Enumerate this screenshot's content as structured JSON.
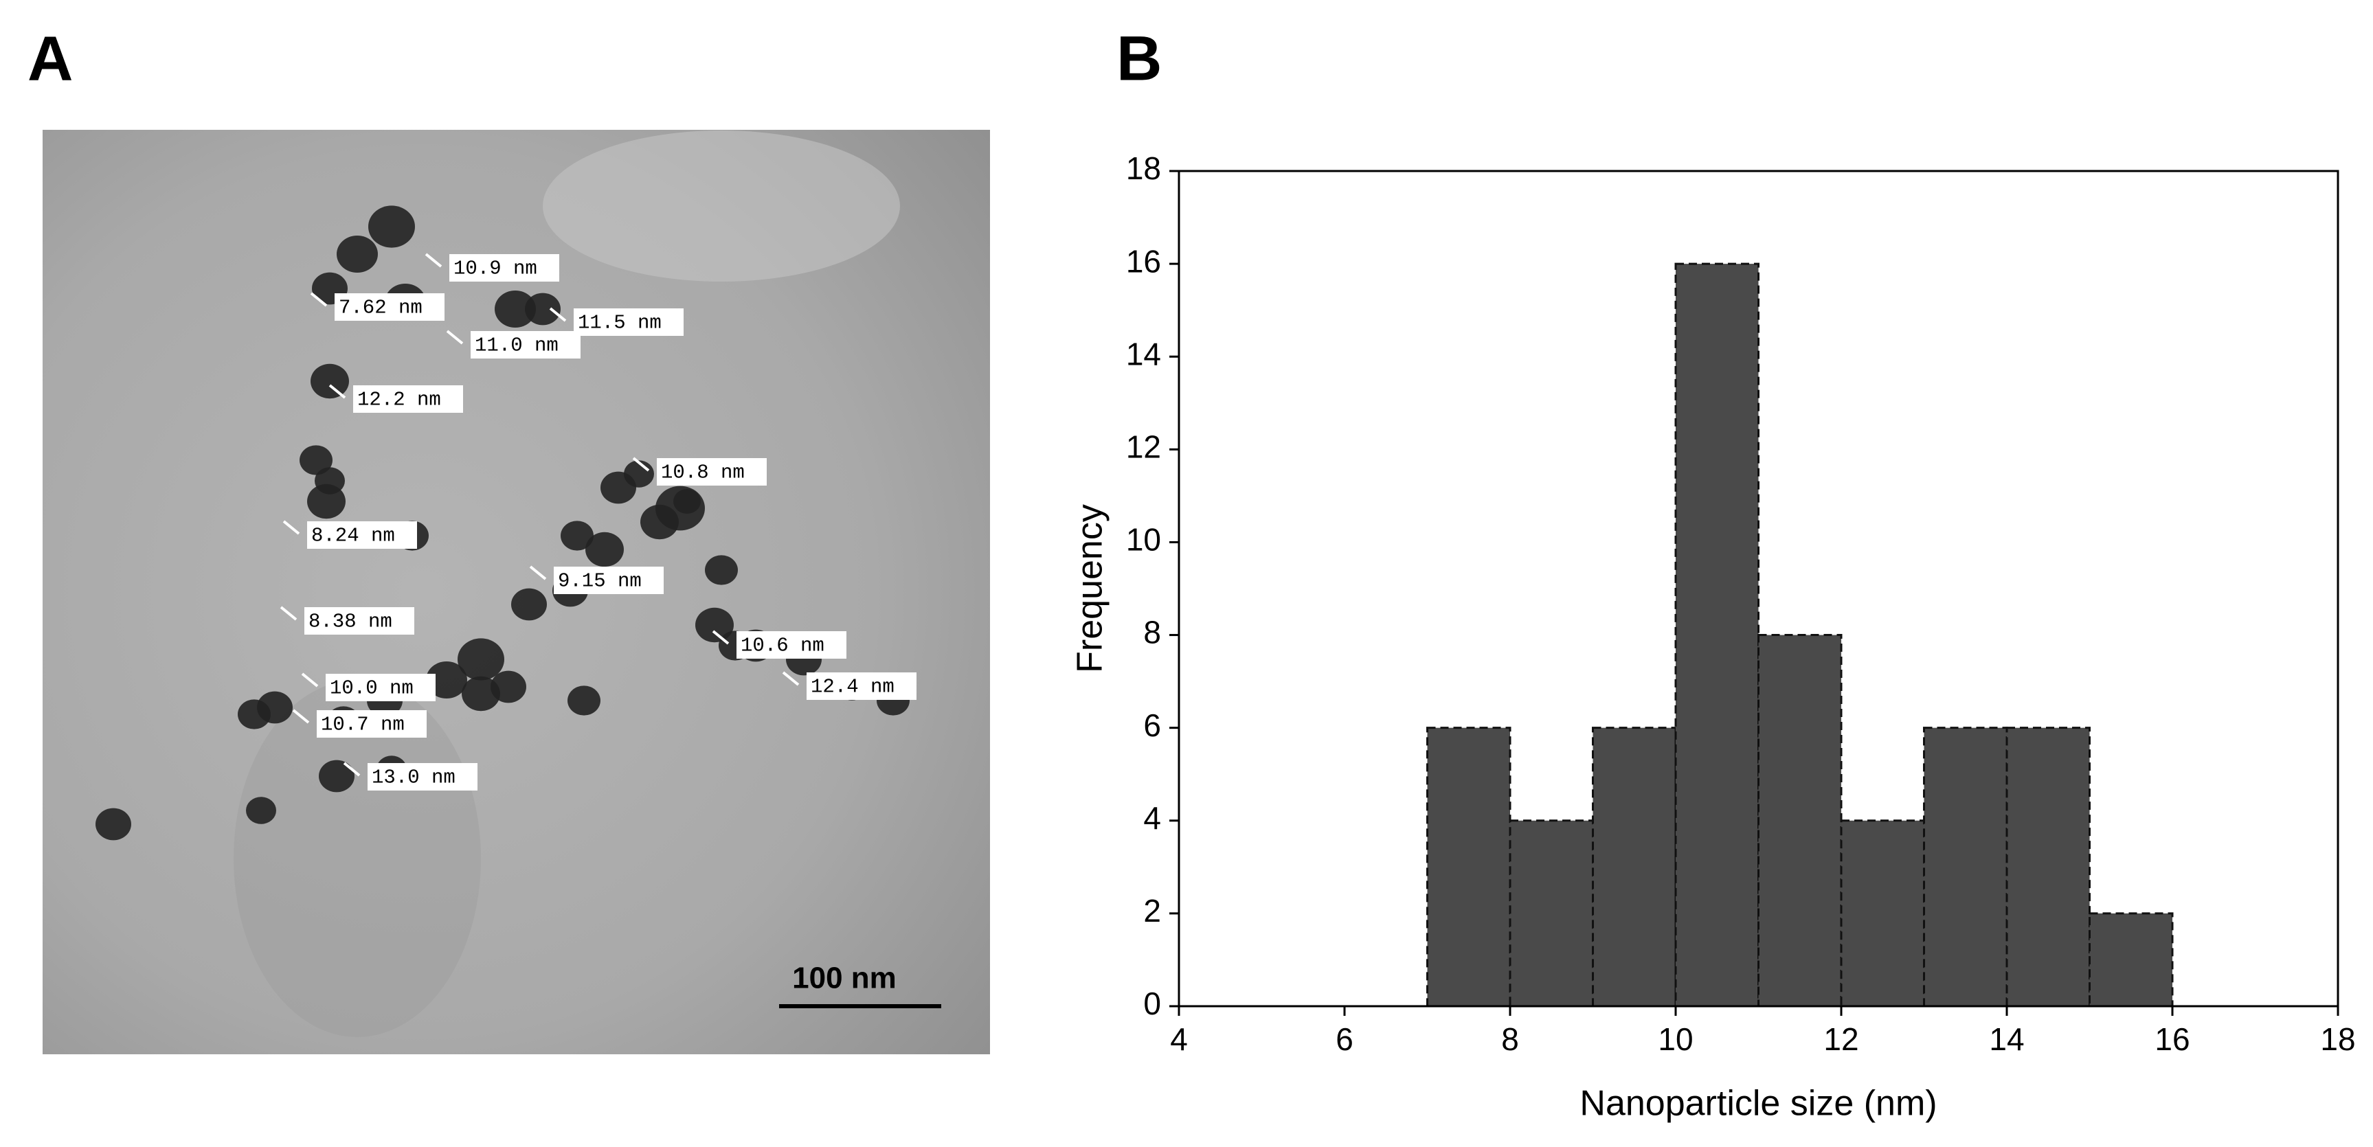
{
  "panel_a": {
    "label": "A",
    "annotations": [
      "10.9 nm",
      "7.62 nm",
      "11.5 nm",
      "11.0 nm",
      "12.2 nm",
      "10.8 nm",
      "8.24 nm",
      "9.15 nm",
      "8.38 nm",
      "10.6 nm",
      "12.4 nm",
      "10.0 nm",
      "10.7 nm",
      "13.0 nm"
    ],
    "scale_bar": "100 nm"
  },
  "chart_data": {
    "type": "histogram",
    "panel_label": "B",
    "bins": [
      7,
      8,
      9,
      10,
      11,
      12,
      13,
      14,
      15,
      16
    ],
    "values": [
      6,
      4,
      6,
      16,
      8,
      4,
      6,
      6,
      2
    ],
    "color": "#4a4a4a",
    "xlim": [
      4,
      18
    ],
    "xticks": [
      4,
      6,
      8,
      10,
      12,
      14,
      16,
      18
    ],
    "ylim": [
      0,
      18
    ],
    "yticks": [
      0,
      2,
      4,
      6,
      8,
      10,
      12,
      14,
      16,
      18
    ],
    "x_label": "Nanoparticle size (nm)",
    "y_label": "Frequency"
  }
}
